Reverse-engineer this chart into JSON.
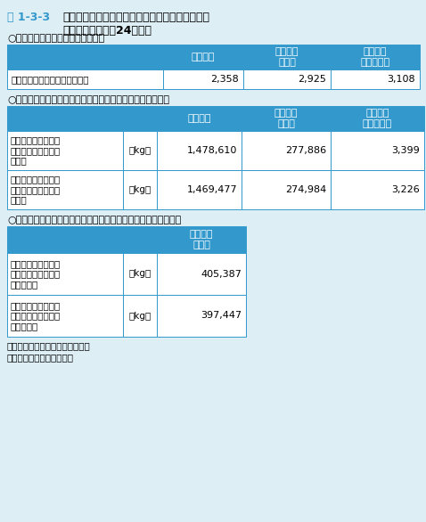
{
  "title_label": "表 1-3-3",
  "title_text": "家電リサイクル法対象製品からのフロン類の回収\n量・破壊量（平成24年度）",
  "bg_color": "#deeef5",
  "header_bg": "#3399cc",
  "header_text_color": "#ffffff",
  "cell_bg": "#ffffff",
  "border_color": "#3399cc",
  "text_color": "#000000",
  "title_color": "#3399cc",
  "section1_title": "○廃家電４品目の再商品化実施状況",
  "section2_title": "○冷媒として使用されていたフロン類の回収重量、破壊重量",
  "section3_title": "○断熱材に含まれる液化回収したフロン類の回収重量、破壊重量",
  "footer1": "注：値は全て小数点以下を切捨て",
  "footer2": "資料：環境省、経済産業省",
  "col_headers": [
    "エアコン",
    "冷蔵庫・\n冷凍庫",
    "洗濯機・\n衣類乾燥機"
  ],
  "col_header3": "冷蔵庫・\n冷凍庫",
  "table1_row_label": "再商品化等処理台数　【千台】",
  "table1_values": [
    "2,358",
    "2,925",
    "3,108"
  ],
  "table2_row1_label": "冷媒として使用され\nていたフロン類の回\n収重量",
  "table2_row1_unit": "［kg］",
  "table2_row1_values": [
    "1,478,610",
    "277,886",
    "3,399"
  ],
  "table2_row2_label": "冷媒として使用され\nていたフロン類の破\n壊重量",
  "table2_row2_unit": "［kg］",
  "table2_row2_values": [
    "1,469,477",
    "274,984",
    "3,226"
  ],
  "table3_row1_label": "断熱材に含まれる液\n化回収したフロン類\nの回収重量",
  "table3_row1_unit": "［kg］",
  "table3_row1_value": "405,387",
  "table3_row2_label": "断熱材に含まれる液\n化回収したフロン類\nの破壊重量",
  "table3_row2_unit": "［kg］",
  "table3_row2_value": "397,447"
}
